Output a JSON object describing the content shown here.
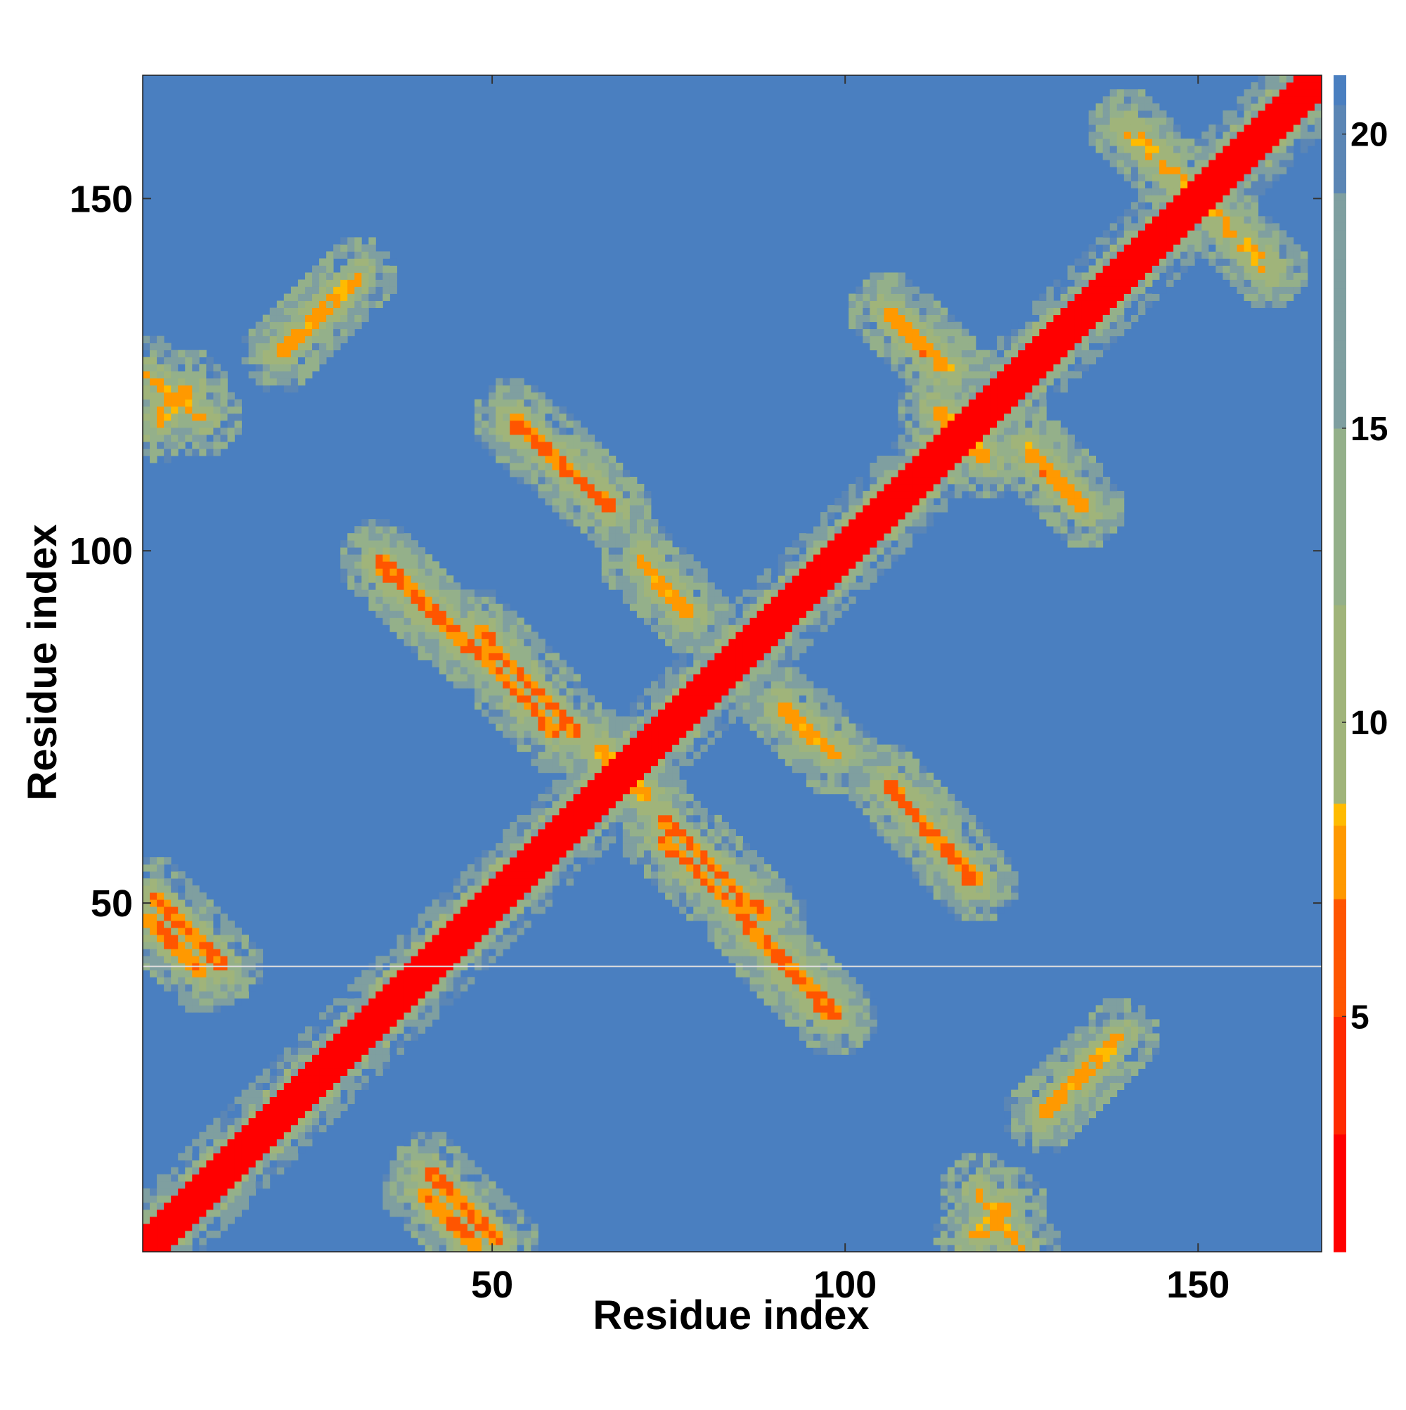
{
  "chart_data": {
    "type": "heatmap",
    "title": "",
    "xlabel": "Residue index",
    "ylabel": "Residue index",
    "n_residues": 167,
    "xlim": [
      1,
      167
    ],
    "ylim": [
      1,
      167
    ],
    "x_ticks": [
      50,
      100,
      150
    ],
    "y_ticks": [
      50,
      100,
      150
    ],
    "x_tick_labels": [
      "50",
      "100",
      "150"
    ],
    "y_tick_labels": [
      "50",
      "100",
      "150"
    ],
    "colorbar": {
      "range": [
        1,
        21
      ],
      "ticks": [
        5,
        10,
        15,
        20
      ],
      "tick_labels": [
        "5",
        "10",
        "15",
        "20"
      ],
      "stops": [
        {
          "value": 1,
          "color": "#ff0000"
        },
        {
          "value": 3,
          "color": "#ff2a00"
        },
        {
          "value": 5,
          "color": "#ff5500"
        },
        {
          "value": 7,
          "color": "#ff9900"
        },
        {
          "value": 8.3,
          "color": "#ffbb00"
        },
        {
          "value": 8.6,
          "color": "#a0b47a"
        },
        {
          "value": 12,
          "color": "#94b08a"
        },
        {
          "value": 15,
          "color": "#7f9fa0"
        },
        {
          "value": 19,
          "color": "#5b86b5"
        },
        {
          "value": 20.5,
          "color": "#4a7fc0"
        },
        {
          "value": 21,
          "color": "#0000ff"
        }
      ]
    },
    "background_value": 21,
    "gap_row": 41,
    "contact_bands": [
      {
        "x": [
          1,
          167
        ],
        "y": [
          1,
          167
        ],
        "orientation": "diagonal",
        "value": 1
      },
      {
        "x": [
          2,
          12
        ],
        "y": [
          41,
          51
        ],
        "orientation": "anti",
        "value": 6
      },
      {
        "x": [
          1,
          9
        ],
        "y": [
          119,
          125
        ],
        "orientation": "anti",
        "value": 7
      },
      {
        "x": [
          21,
          31
        ],
        "y": [
          129,
          139
        ],
        "orientation": "diagonal",
        "value": 7
      },
      {
        "x": [
          34,
          47
        ],
        "y": [
          86,
          99
        ],
        "orientation": "anti",
        "value": 6
      },
      {
        "x": [
          48,
          59
        ],
        "y": [
          74,
          86
        ],
        "orientation": "anti",
        "value": 6
      },
      {
        "x": [
          53,
          67
        ],
        "y": [
          106,
          119
        ],
        "orientation": "anti",
        "value": 6
      },
      {
        "x": [
          71,
          78
        ],
        "y": [
          91,
          98
        ],
        "orientation": "anti",
        "value": 7
      },
      {
        "x": [
          74,
          89
        ],
        "y": [
          48,
          62
        ],
        "orientation": "anti",
        "value": 6
      },
      {
        "x": [
          86,
          98
        ],
        "y": [
          34,
          47
        ],
        "orientation": "anti",
        "value": 6
      },
      {
        "x": [
          91,
          99
        ],
        "y": [
          71,
          78
        ],
        "orientation": "anti",
        "value": 7
      },
      {
        "x": [
          106,
          118
        ],
        "y": [
          53,
          67
        ],
        "orientation": "anti",
        "value": 6
      },
      {
        "x": [
          106,
          114
        ],
        "y": [
          126,
          134
        ],
        "orientation": "anti",
        "value": 7
      },
      {
        "x": [
          113,
          120
        ],
        "y": [
          113,
          120
        ],
        "orientation": "anti",
        "value": 7
      },
      {
        "x": [
          126,
          134
        ],
        "y": [
          106,
          115
        ],
        "orientation": "anti",
        "value": 7
      },
      {
        "x": [
          128,
          135
        ],
        "y": [
          20,
          27
        ],
        "orientation": "diagonal",
        "value": 7
      },
      {
        "x": [
          40,
          48
        ],
        "y": [
          1,
          9
        ],
        "orientation": "anti",
        "value": 6
      },
      {
        "x": [
          118,
          123
        ],
        "y": [
          2,
          7
        ],
        "orientation": "diagonal",
        "value": 7
      },
      {
        "x": [
          65,
          72
        ],
        "y": [
          65,
          72
        ],
        "orientation": "anti",
        "value": 7
      },
      {
        "x": [
          140,
          160
        ],
        "y": [
          140,
          160
        ],
        "orientation": "anti",
        "value": 8
      }
    ]
  },
  "axes": {
    "xlabel": "Residue index",
    "ylabel": "Residue index"
  }
}
